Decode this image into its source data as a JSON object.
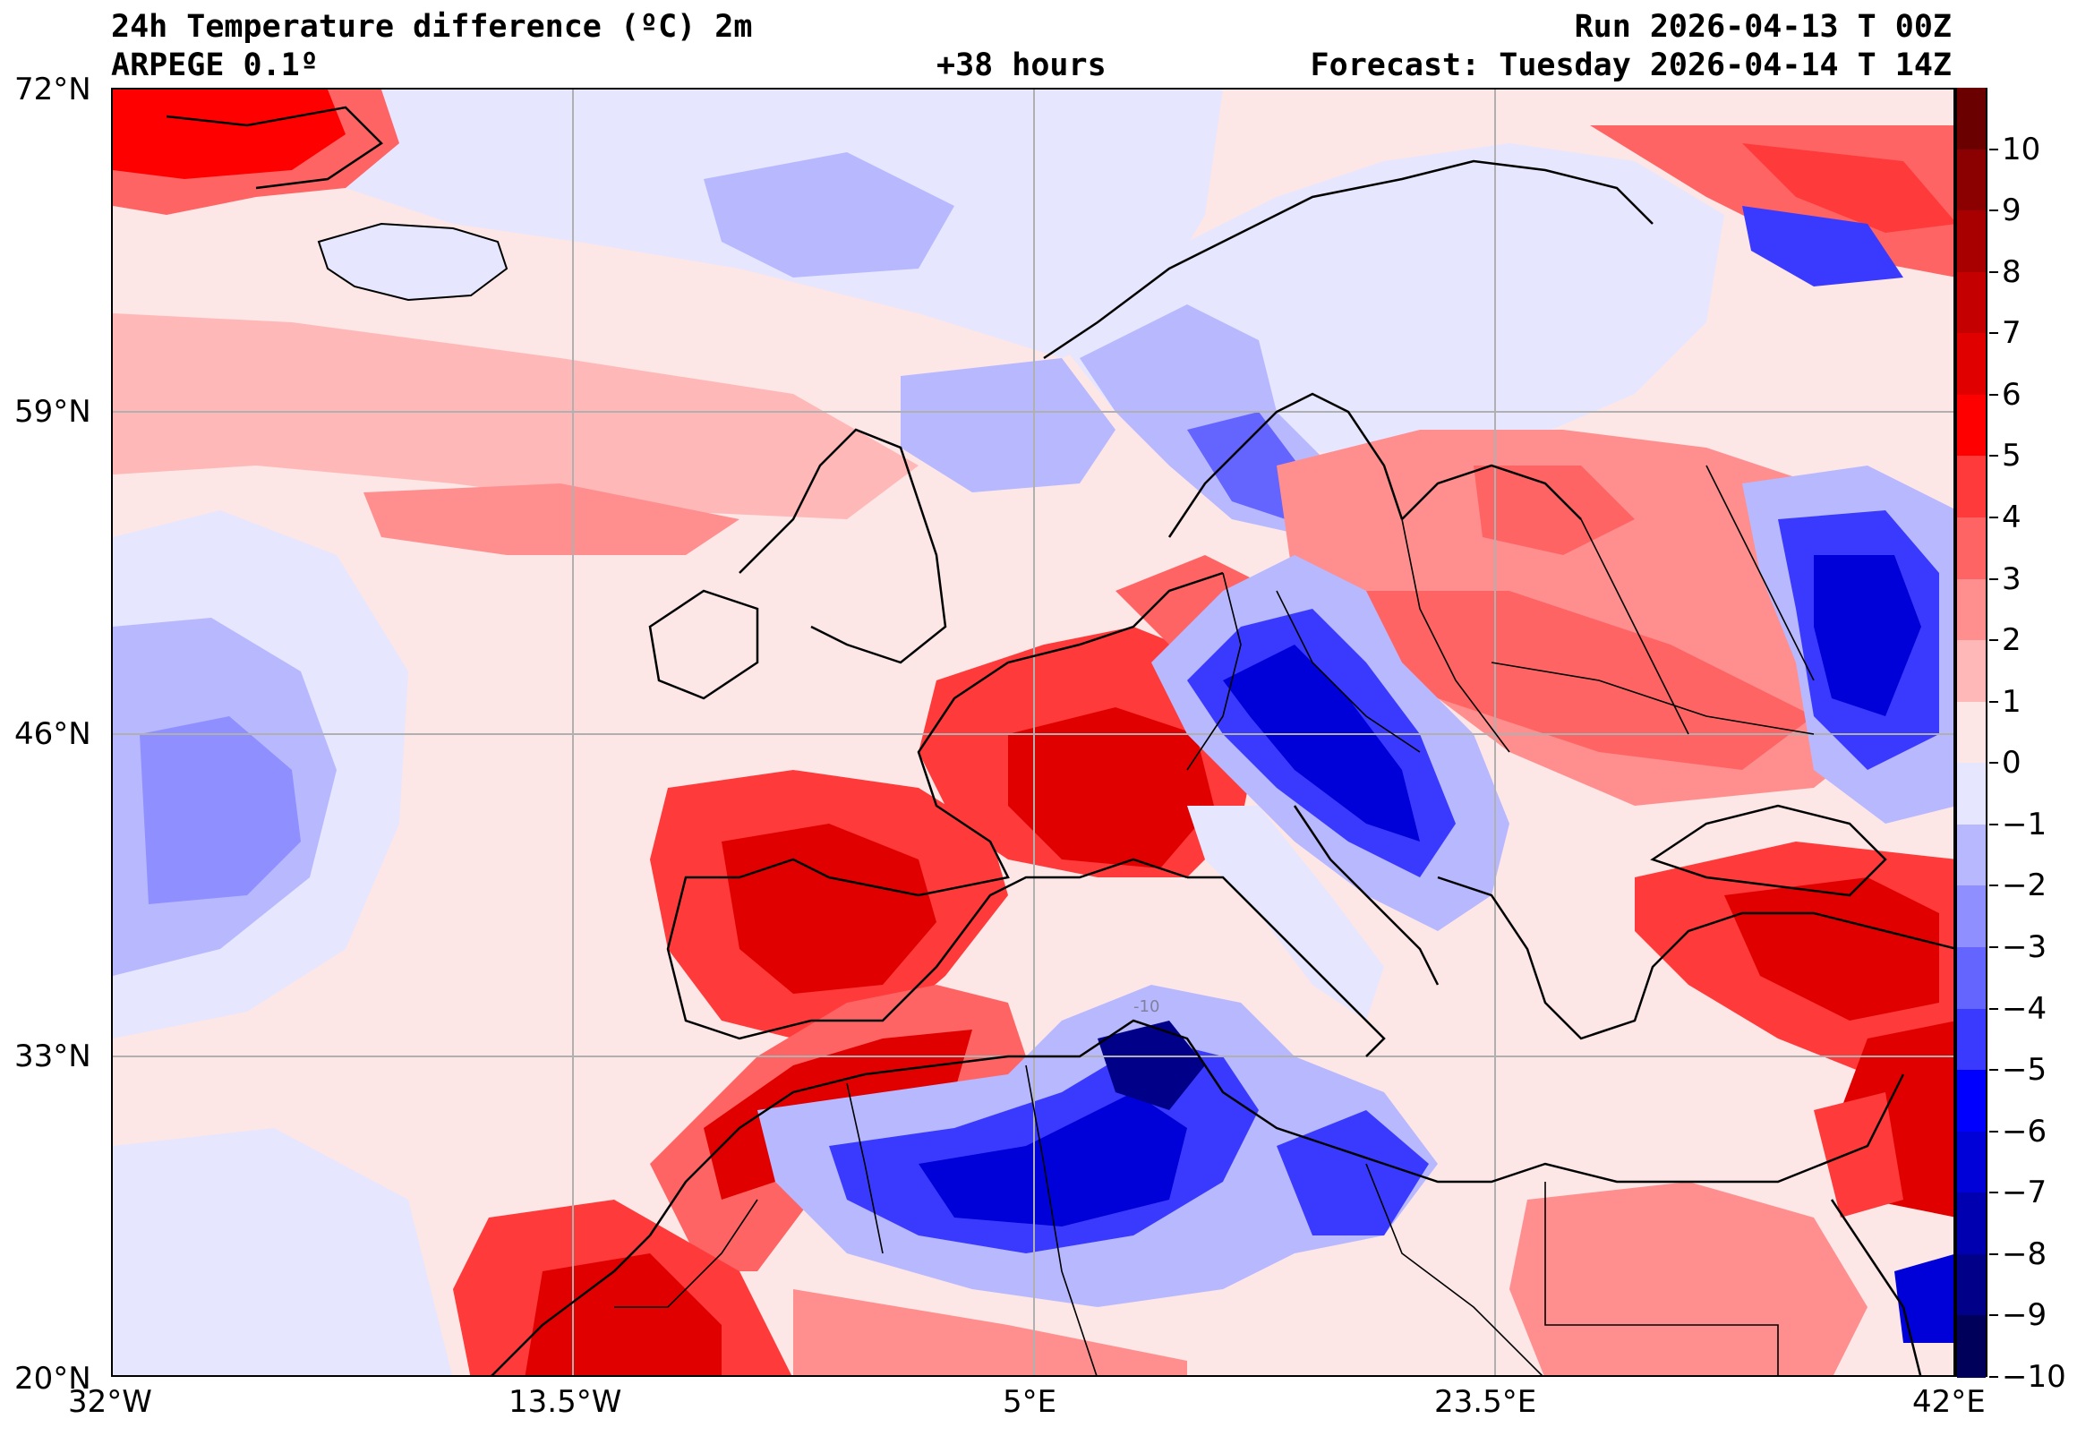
{
  "header": {
    "title": "24h Temperature difference (ºC) 2m",
    "model": "ARPEGE 0.1º",
    "lead_time": "+38 hours",
    "run": "Run 2026-04-13 T 00Z",
    "forecast": "Forecast: Tuesday 2026-04-14 T 14Z"
  },
  "map": {
    "lat_labels": [
      "72°N",
      "59°N",
      "46°N",
      "33°N",
      "20°N"
    ],
    "lon_labels": [
      "32°W",
      "13.5°W",
      "5°E",
      "23.5°E",
      "42°E"
    ],
    "contour_label": "-10",
    "grid": true
  },
  "colorbar": {
    "labels": [
      "10",
      "9",
      "8",
      "7",
      "6",
      "5",
      "4",
      "3",
      "2",
      "1",
      "0",
      "−1",
      "−2",
      "−3",
      "−4",
      "−5",
      "−6",
      "−7",
      "−8",
      "−9",
      "−10"
    ],
    "colors": [
      "#6b0000",
      "#8b0000",
      "#a80000",
      "#c40000",
      "#e00000",
      "#ff0000",
      "#ff3a3a",
      "#ff6464",
      "#ff8f8f",
      "#ffb8b8",
      "#fde6e6",
      "#e6e6ff",
      "#b8b8ff",
      "#8f8fff",
      "#6464ff",
      "#3a3aff",
      "#0000ff",
      "#0000d8",
      "#0000b0",
      "#000088",
      "#00005a"
    ],
    "accent_warm": "#e00000",
    "accent_cold": "#0000d8"
  }
}
